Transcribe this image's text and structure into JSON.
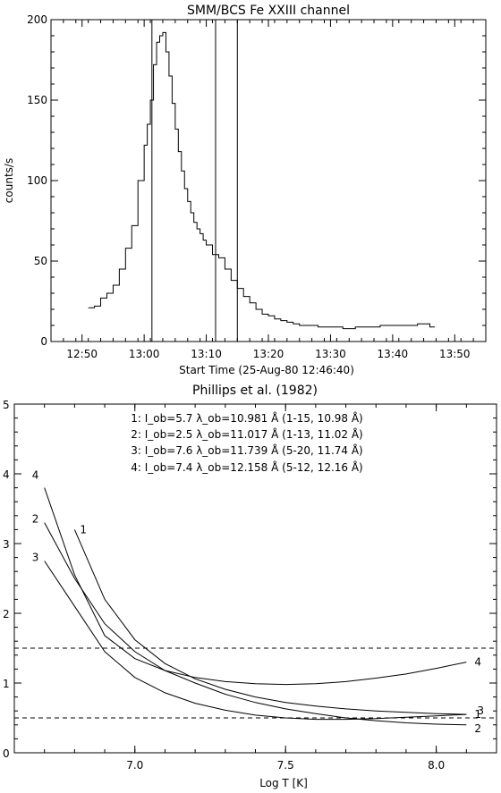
{
  "chart_data": [
    {
      "type": "line",
      "title": "SMM/BCS  Fe XXIII channel",
      "xlabel": "Start Time (25-Aug-80 12:46:40)",
      "ylabel": "counts/s",
      "xlim_minutes_after_1250": [
        -5,
        65
      ],
      "ylim": [
        0,
        200
      ],
      "x_tick_labels": [
        "12:50",
        "13:00",
        "13:10",
        "13:20",
        "13:30",
        "13:40",
        "13:50"
      ],
      "x_tick_minutes_after_1250": [
        0,
        10,
        20,
        30,
        40,
        50,
        60
      ],
      "y_ticks": [
        0,
        50,
        100,
        150,
        200
      ],
      "grid": false,
      "vertical_markers": [
        "13:01:15",
        "13:11:30",
        "13:15:00"
      ],
      "series": [
        {
          "style": "histogram-step",
          "x_minutes_after_1250": [
            1,
            2,
            3,
            4,
            5,
            6,
            7,
            8,
            9,
            10,
            10.5,
            11,
            11.5,
            12,
            12.5,
            13,
            13.5,
            14,
            14.5,
            15,
            15.5,
            16,
            16.5,
            17,
            17.5,
            18,
            18.5,
            19,
            19.5,
            20,
            21,
            22,
            23,
            24,
            25,
            26,
            27,
            28,
            29,
            30,
            31,
            32,
            33,
            34,
            35,
            36,
            38,
            40,
            42,
            44,
            46,
            48,
            50,
            52,
            54,
            56
          ],
          "y": [
            21,
            22,
            27,
            30,
            35,
            45,
            58,
            72,
            100,
            122,
            135,
            150,
            172,
            186,
            190,
            192,
            180,
            165,
            148,
            132,
            118,
            106,
            95,
            87,
            80,
            74,
            70,
            67,
            63,
            60,
            54,
            52,
            45,
            38,
            33,
            28,
            24,
            20,
            17,
            16,
            14,
            13,
            12,
            11,
            10,
            10,
            9,
            9,
            8,
            9,
            9,
            10,
            10,
            10,
            11,
            9
          ]
        }
      ]
    },
    {
      "type": "line",
      "title": "Phillips et al. (1982)",
      "xlabel": "Log T [K]",
      "ylabel": "",
      "xlim": [
        6.6,
        8.2
      ],
      "ylim": [
        0,
        5
      ],
      "x_ticks": [
        7.0,
        7.5,
        8.0
      ],
      "x_tick_labels": [
        "7.0",
        "7.5",
        "8.0"
      ],
      "y_ticks": [
        0,
        1,
        2,
        3,
        4,
        5
      ],
      "grid": false,
      "reference_lines_y": [
        1.5,
        0.5
      ],
      "annotations": [
        "1: I_ob=5.7 λ_ob=10.981 Å (1-15, 10.98 Å)",
        "2: I_ob=2.5 λ_ob=11.017 Å (1-13, 11.02 Å)",
        "3: I_ob=7.6 λ_ob=11.739 Å (5-20, 11.74 Å)",
        "4: I_ob=7.4 λ_ob=12.158 Å (5-12, 12.16 Å)"
      ],
      "series": [
        {
          "name": "1",
          "x": [
            6.8,
            6.9,
            7.0,
            7.1,
            7.2,
            7.3,
            7.4,
            7.5,
            7.6,
            7.7,
            7.8,
            7.9,
            8.0,
            8.1
          ],
          "y": [
            3.2,
            2.2,
            1.62,
            1.28,
            1.06,
            0.91,
            0.8,
            0.72,
            0.67,
            0.63,
            0.6,
            0.58,
            0.56,
            0.55
          ]
        },
        {
          "name": "2",
          "x": [
            6.7,
            6.8,
            6.9,
            7.0,
            7.1,
            7.2,
            7.3,
            7.4,
            7.5,
            7.6,
            7.7,
            7.8,
            7.9,
            8.0,
            8.1
          ],
          "y": [
            3.3,
            2.5,
            1.85,
            1.45,
            1.18,
            1.0,
            0.84,
            0.72,
            0.63,
            0.56,
            0.5,
            0.46,
            0.43,
            0.41,
            0.4
          ]
        },
        {
          "name": "3",
          "x": [
            6.7,
            6.8,
            6.9,
            7.0,
            7.1,
            7.2,
            7.3,
            7.4,
            7.5,
            7.6,
            7.7,
            7.8,
            7.9,
            8.0,
            8.1
          ],
          "y": [
            2.75,
            2.1,
            1.45,
            1.08,
            0.86,
            0.71,
            0.61,
            0.54,
            0.5,
            0.48,
            0.48,
            0.49,
            0.51,
            0.53,
            0.55
          ]
        },
        {
          "name": "4",
          "x": [
            6.7,
            6.8,
            6.9,
            7.0,
            7.1,
            7.2,
            7.3,
            7.4,
            7.5,
            7.6,
            7.7,
            7.8,
            7.9,
            8.0,
            8.1
          ],
          "y": [
            3.8,
            2.55,
            1.68,
            1.35,
            1.18,
            1.08,
            1.02,
            0.99,
            0.98,
            0.99,
            1.02,
            1.07,
            1.13,
            1.21,
            1.3
          ]
        }
      ]
    }
  ]
}
